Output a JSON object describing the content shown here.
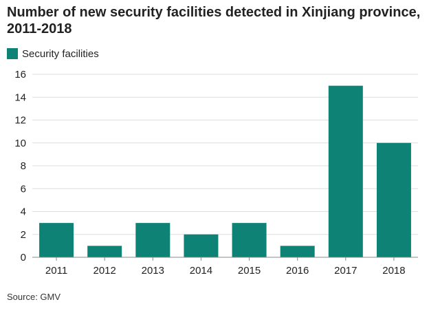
{
  "chart_data": {
    "type": "bar",
    "title": "Number of new security facilities detected in Xinjiang province, 2011-2018",
    "categories": [
      "2011",
      "2012",
      "2013",
      "2014",
      "2015",
      "2016",
      "2017",
      "2018"
    ],
    "series": [
      {
        "name": "Security facilities",
        "values": [
          3,
          1,
          3,
          2,
          3,
          1,
          15,
          10
        ]
      }
    ],
    "xlabel": "",
    "ylabel": "",
    "ylim": [
      0,
      16
    ],
    "yticks": [
      0,
      2,
      4,
      6,
      8,
      10,
      12,
      14,
      16
    ],
    "grid": true,
    "legend_position": "top-left",
    "source": "Source: GMV"
  },
  "colors": {
    "bar": "#0f8276",
    "grid": "#dddddd",
    "axis": "#888888",
    "text": "#222222"
  }
}
